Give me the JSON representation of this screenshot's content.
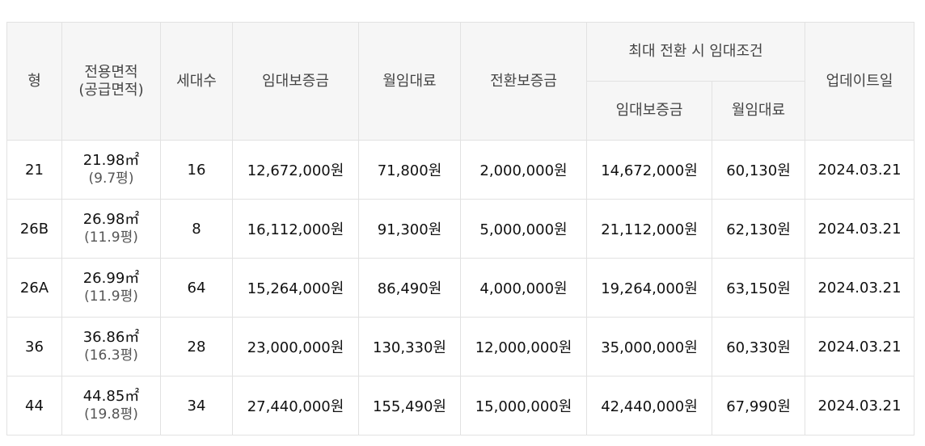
{
  "headers": {
    "type": "형",
    "area_line1": "전용면적",
    "area_line2": "(공급면적)",
    "households": "세대수",
    "deposit": "임대보증금",
    "monthly": "월임대료",
    "conversion_deposit": "전환보증금",
    "max_conversion": "최대 전환 시 임대조건",
    "max_deposit": "임대보증금",
    "max_monthly": "월임대료",
    "updated": "업데이트일"
  },
  "rows": [
    {
      "type": "21",
      "area": "21.98㎡",
      "supply": "(9.7평)",
      "households": "16",
      "deposit": "12,672,000원",
      "monthly": "71,800원",
      "conversion_deposit": "2,000,000원",
      "max_deposit": "14,672,000원",
      "max_monthly": "60,130원",
      "updated": "2024.03.21"
    },
    {
      "type": "26B",
      "area": "26.98㎡",
      "supply": "(11.9평)",
      "households": "8",
      "deposit": "16,112,000원",
      "monthly": "91,300원",
      "conversion_deposit": "5,000,000원",
      "max_deposit": "21,112,000원",
      "max_monthly": "62,130원",
      "updated": "2024.03.21"
    },
    {
      "type": "26A",
      "area": "26.99㎡",
      "supply": "(11.9평)",
      "households": "64",
      "deposit": "15,264,000원",
      "monthly": "86,490원",
      "conversion_deposit": "4,000,000원",
      "max_deposit": "19,264,000원",
      "max_monthly": "63,150원",
      "updated": "2024.03.21"
    },
    {
      "type": "36",
      "area": "36.86㎡",
      "supply": "(16.3평)",
      "households": "28",
      "deposit": "23,000,000원",
      "monthly": "130,330원",
      "conversion_deposit": "12,000,000원",
      "max_deposit": "35,000,000원",
      "max_monthly": "60,330원",
      "updated": "2024.03.21"
    },
    {
      "type": "44",
      "area": "44.85㎡",
      "supply": "(19.8평)",
      "households": "34",
      "deposit": "27,440,000원",
      "monthly": "155,490원",
      "conversion_deposit": "15,000,000원",
      "max_deposit": "42,440,000원",
      "max_monthly": "67,990원",
      "updated": "2024.03.21"
    }
  ]
}
